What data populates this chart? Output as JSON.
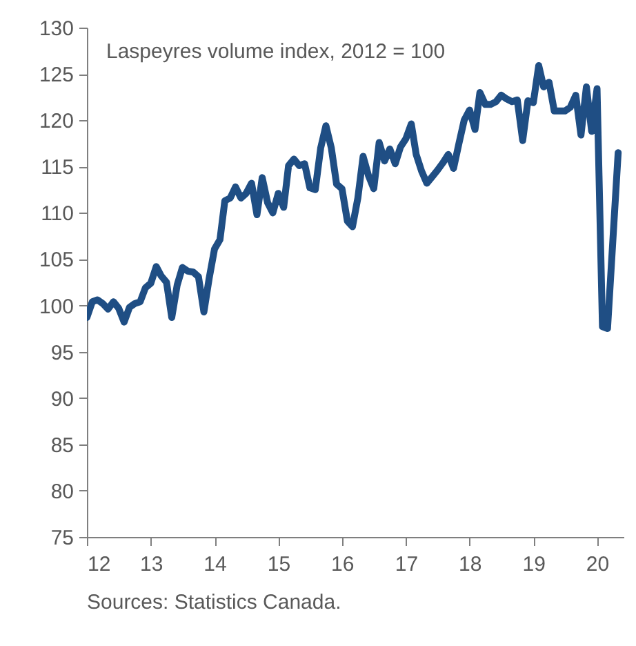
{
  "chart_data": {
    "type": "line",
    "ylabel": "Laspeyres volume index, 2012 = 100",
    "x": [
      "2012-01",
      "2012-02",
      "2012-03",
      "2012-04",
      "2012-05",
      "2012-06",
      "2012-07",
      "2012-08",
      "2012-09",
      "2012-10",
      "2012-11",
      "2012-12",
      "2013-01",
      "2013-02",
      "2013-03",
      "2013-04",
      "2013-05",
      "2013-06",
      "2013-07",
      "2013-08",
      "2013-09",
      "2013-10",
      "2013-11",
      "2013-12",
      "2014-01",
      "2014-02",
      "2014-03",
      "2014-04",
      "2014-05",
      "2014-06",
      "2014-07",
      "2014-08",
      "2014-09",
      "2014-10",
      "2014-11",
      "2014-12",
      "2015-01",
      "2015-02",
      "2015-03",
      "2015-04",
      "2015-05",
      "2015-06",
      "2015-07",
      "2015-08",
      "2015-09",
      "2015-10",
      "2015-11",
      "2015-12",
      "2016-01",
      "2016-02",
      "2016-03",
      "2016-04",
      "2016-05",
      "2016-06",
      "2016-07",
      "2016-08",
      "2016-09",
      "2016-10",
      "2016-11",
      "2016-12",
      "2017-01",
      "2017-02",
      "2017-03",
      "2017-04",
      "2017-05",
      "2017-06",
      "2017-07",
      "2017-08",
      "2017-09",
      "2017-10",
      "2017-11",
      "2017-12",
      "2018-01",
      "2018-02",
      "2018-03",
      "2018-04",
      "2018-05",
      "2018-06",
      "2018-07",
      "2018-08",
      "2018-09",
      "2018-10",
      "2018-11",
      "2018-12",
      "2019-01",
      "2019-02",
      "2019-03",
      "2019-04",
      "2019-05",
      "2019-06",
      "2019-07",
      "2019-08",
      "2019-09",
      "2019-10",
      "2019-11",
      "2019-12",
      "2020-01",
      "2020-02",
      "2020-03",
      "2020-05"
    ],
    "series": [
      {
        "color": "#1f4e84",
        "values": [
          98.7,
          100.4,
          100.6,
          100.2,
          99.6,
          100.4,
          99.7,
          98.2,
          99.8,
          100.2,
          100.4,
          101.9,
          102.4,
          104.2,
          103.2,
          102.5,
          98.7,
          102.2,
          104.1,
          103.7,
          103.6,
          103.1,
          99.3,
          102.9,
          106.1,
          107.1,
          111.3,
          111.6,
          112.8,
          111.6,
          112.1,
          113.2,
          109.8,
          113.8,
          111.1,
          110.0,
          112.1,
          110.6,
          115.1,
          115.8,
          115.1,
          115.3,
          112.7,
          112.5,
          117.0,
          119.4,
          117.0,
          113.1,
          112.6,
          109.1,
          108.5,
          111.6,
          116.1,
          114.0,
          112.6,
          117.6,
          115.6,
          116.9,
          115.3,
          117.1,
          118.0,
          119.6,
          116.3,
          114.5,
          113.2,
          113.9,
          114.6,
          115.4,
          116.3,
          114.8,
          117.5,
          120.0,
          121.1,
          119.0,
          123.0,
          121.7,
          121.7,
          122.0,
          122.7,
          122.3,
          122.0,
          122.2,
          117.8,
          122.1,
          121.9,
          125.9,
          123.6,
          124.1,
          121.0,
          121.0,
          121.0,
          121.4,
          122.7,
          118.4,
          123.6,
          118.8,
          123.4,
          97.7,
          97.5,
          116.5
        ]
      }
    ],
    "xlim": [
      "2012-01",
      "2020-06"
    ],
    "xticks": [
      {
        "value": "2012-01",
        "label": "12"
      },
      {
        "value": "2013-01",
        "label": "13"
      },
      {
        "value": "2014-01",
        "label": "14"
      },
      {
        "value": "2015-01",
        "label": "15"
      },
      {
        "value": "2016-01",
        "label": "16"
      },
      {
        "value": "2017-01",
        "label": "17"
      },
      {
        "value": "2018-01",
        "label": "18"
      },
      {
        "value": "2019-01",
        "label": "19"
      },
      {
        "value": "2020-01",
        "label": "20"
      }
    ],
    "ylim": [
      75,
      130
    ],
    "yticks": [
      75,
      80,
      85,
      90,
      95,
      100,
      105,
      110,
      115,
      120,
      125,
      130
    ],
    "line_style": "solid",
    "grid": false,
    "legend": false,
    "annotations": [
      "Sources: Statistics Canada."
    ]
  }
}
